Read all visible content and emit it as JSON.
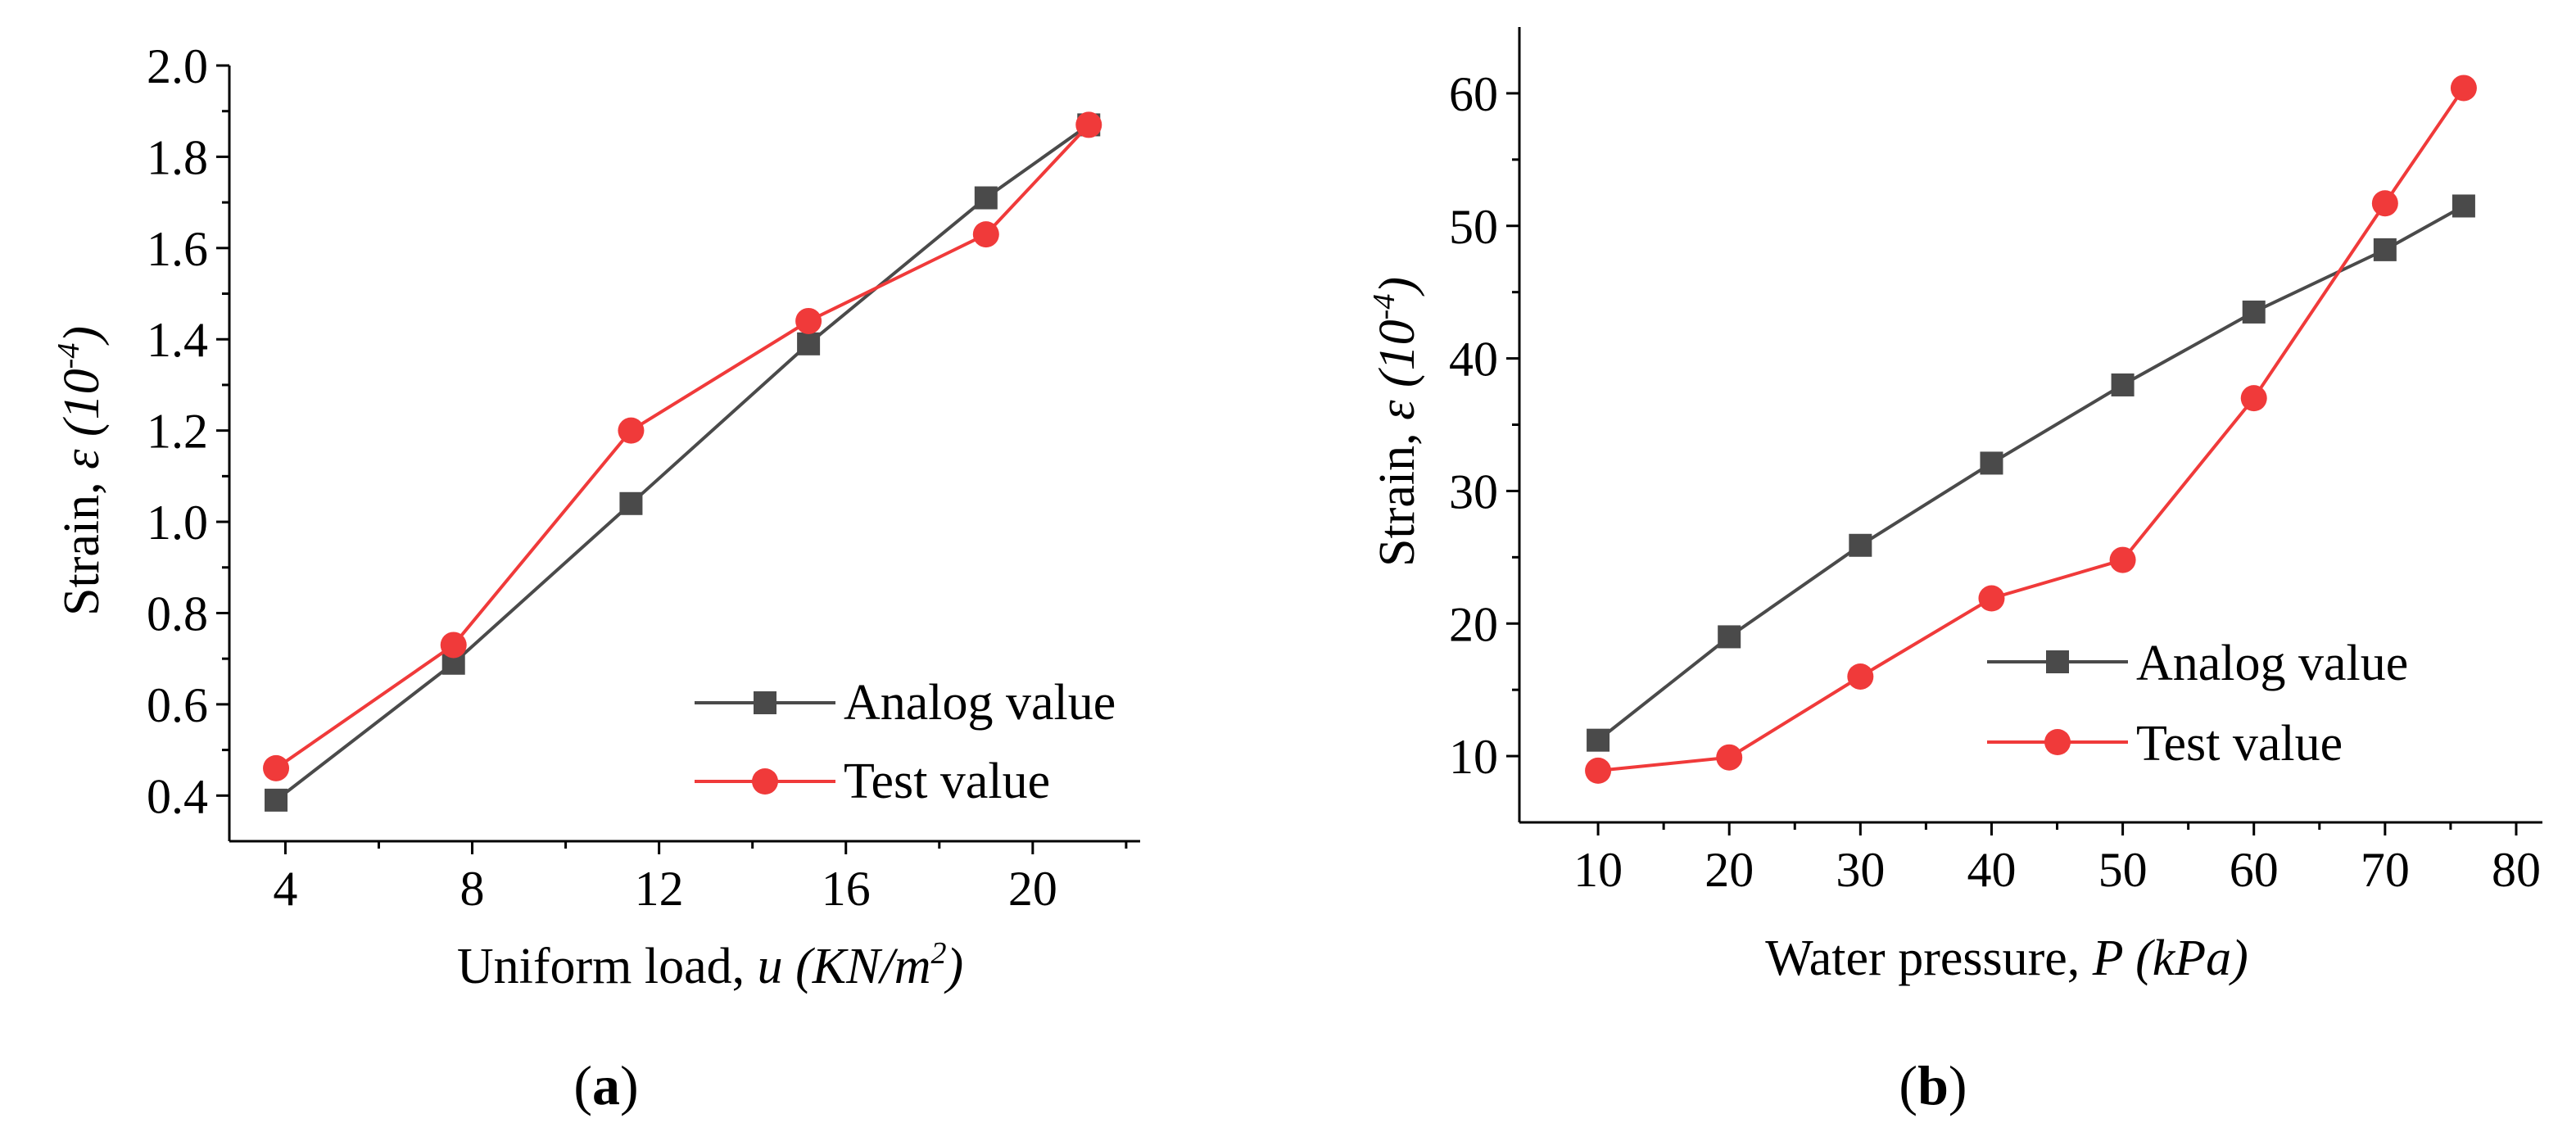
{
  "chart_data": [
    {
      "type": "line",
      "panel_label": "(a)",
      "panel_label_parts": {
        "open": "(",
        "letter": "a",
        "close": ")"
      },
      "xlabel": "Uniform load, u (KN/m2)",
      "xlabel_parts": {
        "text": "Uniform load, ",
        "var": "u",
        "unit": " (KN/m",
        "sup": "2",
        "close": ")"
      },
      "ylabel": "Strain, ε (10-4)",
      "ylabel_parts": {
        "text": "Strain, ",
        "var": "ε",
        "unit": " (10",
        "sup": "-4",
        "close": ")"
      },
      "xlim": [
        2.8,
        22.3
      ],
      "ylim": [
        0.3,
        2.0
      ],
      "x_ticks": [
        4,
        8,
        12,
        16,
        20
      ],
      "x_minor_ticks": [
        6,
        10,
        14,
        18,
        22
      ],
      "y_ticks": [
        0.4,
        0.6,
        0.8,
        1.0,
        1.2,
        1.4,
        1.6,
        1.8,
        2.0
      ],
      "y_tick_labels": [
        "0.4",
        "0.6",
        "0.8",
        "1.0",
        "1.2",
        "1.4",
        "1.6",
        "1.8",
        "2.0"
      ],
      "y_minor_ticks": [
        0.5,
        0.7,
        0.9,
        1.1,
        1.3,
        1.5,
        1.7,
        1.9
      ],
      "legend_position": "bottom-right",
      "series": [
        {
          "name": "Analog value",
          "color": "#4a4a4a",
          "marker": "square",
          "x": [
            3.8,
            7.6,
            11.4,
            15.2,
            19.0,
            21.2
          ],
          "y": [
            0.39,
            0.69,
            1.04,
            1.39,
            1.71,
            1.87
          ]
        },
        {
          "name": "Test value",
          "color": "#f03a3a",
          "marker": "circle",
          "x": [
            3.8,
            7.6,
            11.4,
            15.2,
            19.0,
            21.2
          ],
          "y": [
            0.46,
            0.73,
            1.2,
            1.44,
            1.63,
            1.87
          ]
        }
      ]
    },
    {
      "type": "line",
      "panel_label": "(b)",
      "panel_label_parts": {
        "open": "(",
        "letter": "b",
        "close": ")"
      },
      "xlabel": "Water pressure, P (kPa)",
      "xlabel_parts": {
        "text": "Water pressure, ",
        "var": "P",
        "unit": " (kPa)"
      },
      "ylabel": "Strain, ε (10-4)",
      "ylabel_parts": {
        "text": "Strain, ",
        "var": "ε",
        "unit": " (10",
        "sup": "-4",
        "close": ")"
      },
      "xlim": [
        4,
        82
      ],
      "ylim": [
        5,
        65
      ],
      "x_ticks": [
        10,
        20,
        30,
        40,
        50,
        60,
        70,
        80
      ],
      "x_minor_ticks": [
        15,
        25,
        35,
        45,
        55,
        65,
        75
      ],
      "y_ticks": [
        10,
        20,
        30,
        40,
        50,
        60
      ],
      "y_tick_labels": [
        "10",
        "20",
        "30",
        "40",
        "50",
        "60"
      ],
      "y_minor_ticks": [
        15,
        25,
        35,
        45,
        55
      ],
      "legend_position": "bottom-right",
      "series": [
        {
          "name": "Analog value",
          "color": "#4a4a4a",
          "marker": "square",
          "x": [
            10,
            20,
            30,
            40,
            50,
            60,
            70,
            76
          ],
          "y": [
            11.2,
            19.0,
            25.9,
            32.1,
            38.0,
            43.5,
            48.2,
            51.5
          ]
        },
        {
          "name": "Test value",
          "color": "#f03a3a",
          "marker": "circle",
          "x": [
            10,
            20,
            30,
            40,
            50,
            60,
            70,
            76
          ],
          "y": [
            8.9,
            9.9,
            16.0,
            21.9,
            24.8,
            37.0,
            51.7,
            60.4
          ]
        }
      ]
    }
  ]
}
